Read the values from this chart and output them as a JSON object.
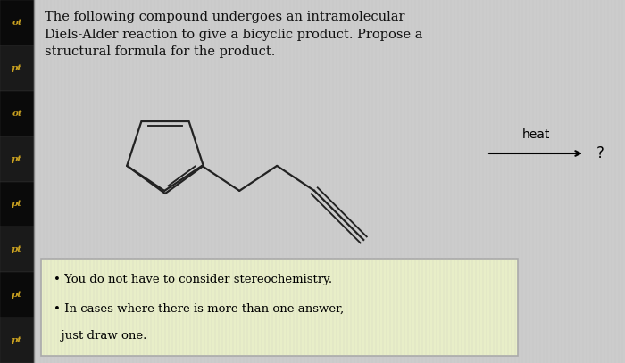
{
  "title_text": "The following compound undergoes an intramolecular\nDiels-Alder reaction to give a bicyclic product. Propose a\nstructural formula for the product.",
  "title_fontsize": 10.5,
  "bg_color": "#cccccc",
  "content_bg": "#d4d4d4",
  "left_bar_bg": "#111111",
  "left_bar_text_color": "#c8a020",
  "left_bar_labels": [
    "ot",
    "pt",
    "ot",
    "pt",
    "pt",
    "pt",
    "pt",
    "pt"
  ],
  "heat_text": "heat",
  "arrow_text": "?",
  "note_line1": "• You do not have to consider stereochemistry.",
  "note_line2": "• In cases where there is more than one answer,",
  "note_line3": "  just draw one.",
  "note_bg": "#e8eec8",
  "note_border": "#aaaaaa",
  "molecule_color": "#222222",
  "text_color": "#111111"
}
